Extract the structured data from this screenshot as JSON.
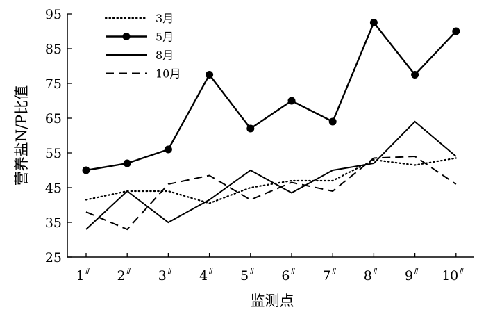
{
  "chart_data": {
    "type": "line",
    "xlabel": "监测点",
    "ylabel": "营养盐N/P比值",
    "ylim": [
      25,
      95
    ],
    "yticks": [
      "25",
      "35",
      "45",
      "55",
      "65",
      "75",
      "85",
      "95"
    ],
    "categories": [
      "1",
      "2",
      "3",
      "4",
      "5",
      "6",
      "7",
      "8",
      "9",
      "10"
    ],
    "category_superscript": "#",
    "legend_position": "top-left",
    "grid": false,
    "series": [
      {
        "name": "3月",
        "style": "dotted",
        "marker": "none",
        "values": [
          41.5,
          44,
          44,
          40.5,
          45,
          47,
          47,
          53,
          51.5,
          53.5
        ]
      },
      {
        "name": "5月",
        "style": "solid-bold",
        "marker": "circle",
        "values": [
          50,
          52,
          56,
          77.5,
          62,
          70,
          64,
          92.5,
          77.5,
          90
        ]
      },
      {
        "name": "8月",
        "style": "solid",
        "marker": "none",
        "values": [
          33,
          44,
          35,
          41.5,
          50,
          43.5,
          50,
          52,
          64,
          54
        ]
      },
      {
        "name": "10月",
        "style": "dashed",
        "marker": "none",
        "values": [
          38,
          33,
          46,
          48.5,
          41.5,
          46.5,
          44,
          53.5,
          54,
          46
        ]
      }
    ]
  }
}
